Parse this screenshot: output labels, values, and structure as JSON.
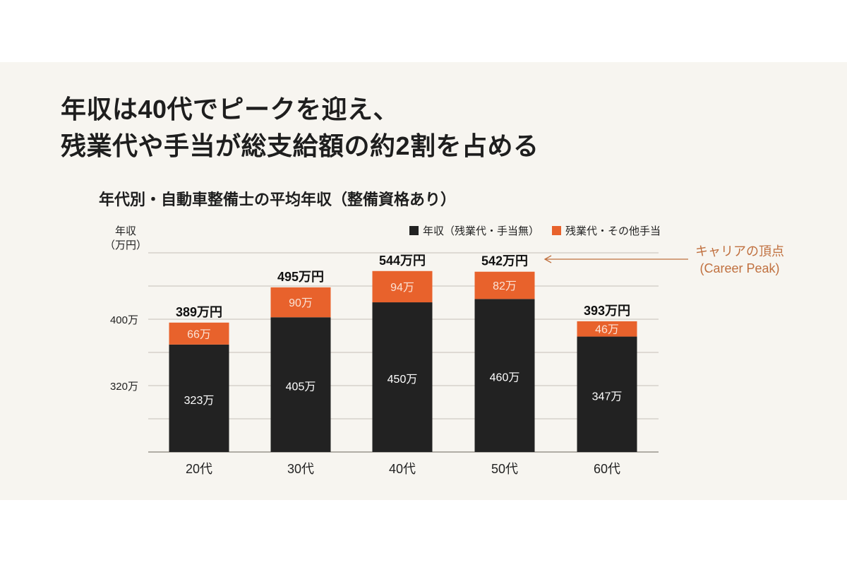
{
  "title": {
    "line1": "年収は40代でピークを迎え、",
    "line2": "残業代や手当が総支給額の約2割を占める"
  },
  "chart_data": {
    "type": "bar",
    "stacked": true,
    "title": "年代別・自動車整備士の平均年収（整備資格あり）",
    "ylabel": "年収\n（万円）",
    "ylabel_line1": "年収",
    "ylabel_line2": "（万円）",
    "xlabel": "",
    "categories": [
      "20代",
      "30代",
      "40代",
      "50代",
      "60代"
    ],
    "series": [
      {
        "name": "年収（残業代・手当無）",
        "color": "#222222",
        "values": [
          323,
          405,
          450,
          460,
          347
        ],
        "labels": [
          "323万",
          "405万",
          "450万",
          "460万",
          "347万"
        ]
      },
      {
        "name": "残業代・その他手当",
        "color": "#e8622c",
        "values": [
          66,
          90,
          94,
          82,
          46
        ],
        "labels": [
          "66万",
          "90万",
          "94万",
          "82万",
          "46万"
        ]
      }
    ],
    "totals": [
      389,
      495,
      544,
      542,
      393
    ],
    "total_labels": [
      "389万円",
      "495万円",
      "544万円",
      "542万円",
      "393万円"
    ],
    "yticks": [
      "400万",
      "320万"
    ],
    "grid": true,
    "legend": "top-right",
    "annotation": {
      "line1": "キャリアの頂点",
      "line2": "(Career Peak)",
      "target": "50代",
      "color": "#c0703f"
    }
  }
}
